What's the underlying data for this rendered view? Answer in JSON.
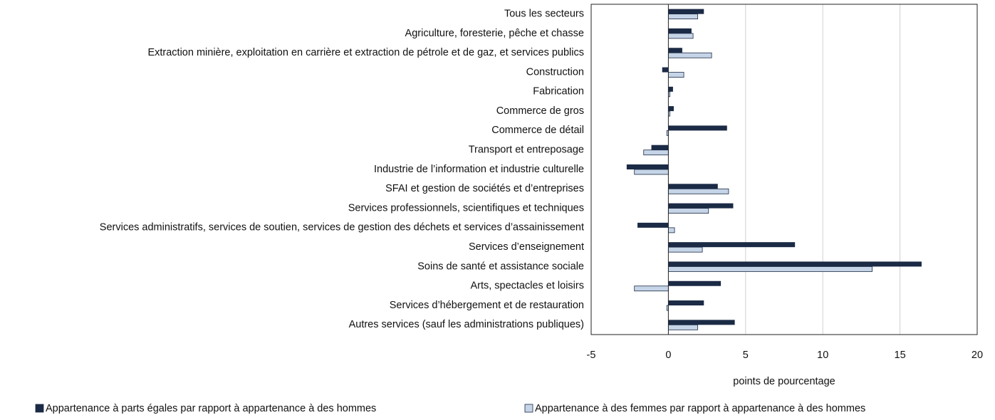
{
  "chart_data": {
    "type": "barh",
    "xlabel": "points de pourcentage",
    "categories": [
      "Tous les secteurs",
      "Agriculture, foresterie, pêche et chasse",
      "Extraction minière, exploitation en carrière et extraction de pétrole et de gaz, et services publics",
      "Construction",
      "Fabrication",
      "Commerce de gros",
      "Commerce de détail",
      "Transport et entreposage",
      "Industrie de l’information et industrie culturelle",
      "SFAI et gestion de sociétés et d’entreprises",
      "Services professionnels, scientifiques et techniques",
      "Services administratifs, services de soutien, services de gestion des déchets et services d’assainissement",
      "Services d’enseignement",
      "Soins de santé et assistance sociale",
      "Arts, spectacles et loisirs",
      "Services d’hébergement et de restauration",
      "Autres services (sauf les administrations publiques)"
    ],
    "series": [
      {
        "name": "Appartenance à parts égales par rapport à appartenance à des hommes",
        "color": "#1b2a45",
        "values": [
          2.3,
          1.5,
          0.9,
          -0.4,
          0.3,
          0.35,
          3.8,
          -1.1,
          -2.7,
          3.2,
          4.2,
          -2.0,
          8.2,
          16.4,
          3.4,
          2.3,
          4.3
        ]
      },
      {
        "name": "Appartenance à des femmes par rapport à appartenance à des hommes",
        "color": "#c6d4e7",
        "values": [
          1.9,
          1.6,
          2.8,
          1.0,
          0.1,
          0.1,
          -0.1,
          -1.6,
          -2.2,
          3.9,
          2.6,
          0.4,
          2.2,
          13.2,
          -2.2,
          -0.1,
          1.9
        ]
      }
    ],
    "xlim": [
      -5,
      20
    ],
    "xticks": [
      -5,
      0,
      5,
      10,
      15,
      20
    ],
    "grid": true
  }
}
